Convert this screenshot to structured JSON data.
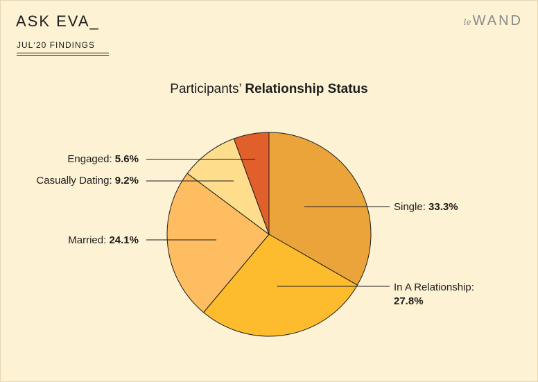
{
  "header": {
    "brand_title": "ASK EVA_",
    "subtitle": "JUL‘20 FINDINGS",
    "logo_prefix": "le",
    "logo_name": "WAND"
  },
  "chart_data": {
    "type": "pie",
    "title_prefix": "Participants’",
    "title_bold": "Relationship Status",
    "slices": [
      {
        "label": "Single:",
        "value": 33.3,
        "value_text": "33.3%",
        "color": "#eba43a"
      },
      {
        "label": "In A Relationship:",
        "value": 27.8,
        "value_text": "27.8%",
        "color": "#fdbb2e"
      },
      {
        "label": "Married:",
        "value": 24.1,
        "value_text": "24.1%",
        "color": "#fdbd60"
      },
      {
        "label": "Casually Dating:",
        "value": 9.2,
        "value_text": "9.2%",
        "color": "#fedd8c"
      },
      {
        "label": "Engaged:",
        "value": 5.6,
        "value_text": "5.6%",
        "color": "#e05f2a"
      }
    ]
  }
}
